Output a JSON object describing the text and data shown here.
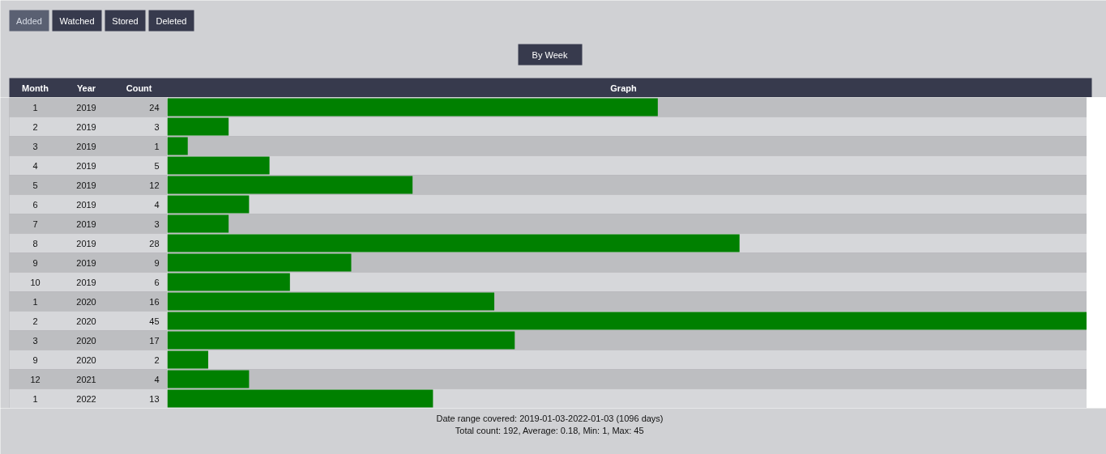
{
  "chart_data": {
    "type": "bar",
    "orientation": "horizontal",
    "data_labels": true,
    "categories": [
      "1 2019",
      "2 2019",
      "3 2019",
      "4 2019",
      "5 2019",
      "6 2019",
      "7 2019",
      "8 2019",
      "9 2019",
      "10 2019",
      "1 2020",
      "2 2020",
      "3 2020",
      "9 2020",
      "12 2021",
      "1 2022"
    ],
    "values": [
      24,
      3,
      1,
      5,
      12,
      4,
      3,
      28,
      9,
      6,
      16,
      45,
      17,
      2,
      4,
      13
    ],
    "color": "#008000",
    "annotations": [
      "Added",
      "Watched",
      "Stored",
      "Deleted",
      "By Week",
      "Month",
      "Year",
      "Count",
      "Graph",
      "Date range covered: 2019-01-03-2022-01-03 (1096 days)",
      "Total count: 192, Average: 0.18, Min: 1, Max: 45"
    ]
  }
}
